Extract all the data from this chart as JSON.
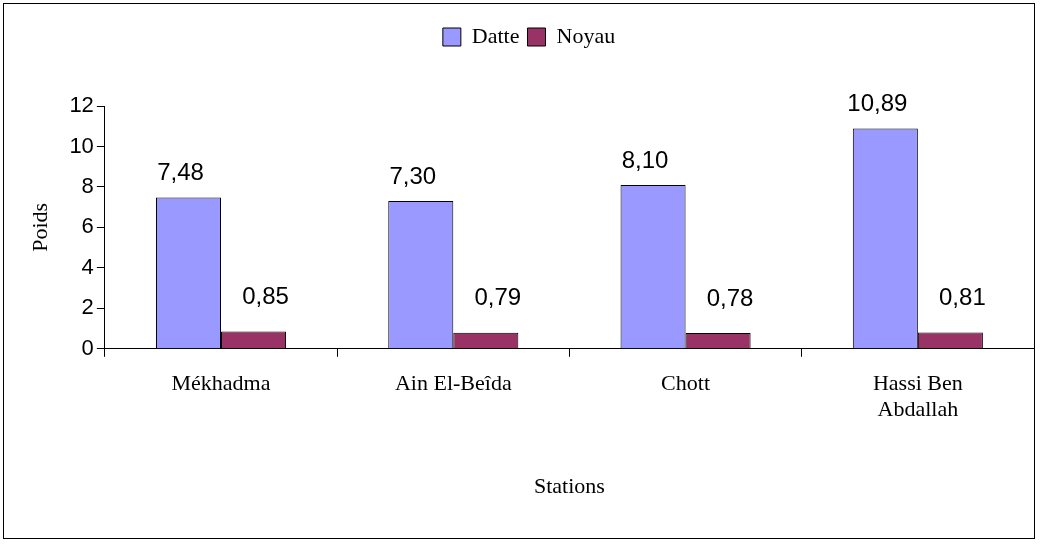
{
  "chart_data": {
    "type": "bar",
    "xlabel": "Stations",
    "ylabel": "Poids",
    "categories": [
      "Mékhadma",
      "Ain El-Beîda",
      "Chott",
      "Hassi Ben Abdallah"
    ],
    "series": [
      {
        "name": "Datte",
        "color": "#9999ff",
        "values": [
          7.48,
          7.3,
          8.1,
          10.89
        ],
        "value_labels": [
          "7,48",
          "7,30",
          "8,10",
          "10,89"
        ]
      },
      {
        "name": "Noyau",
        "color": "#993366",
        "values": [
          0.85,
          0.79,
          0.78,
          0.81
        ],
        "value_labels": [
          "0,85",
          "0,79",
          "0,78",
          "0,81"
        ]
      }
    ],
    "ylim": [
      0,
      12
    ],
    "yticks": [
      0,
      2,
      4,
      6,
      8,
      10,
      12
    ],
    "grid": false,
    "legend": "top"
  }
}
